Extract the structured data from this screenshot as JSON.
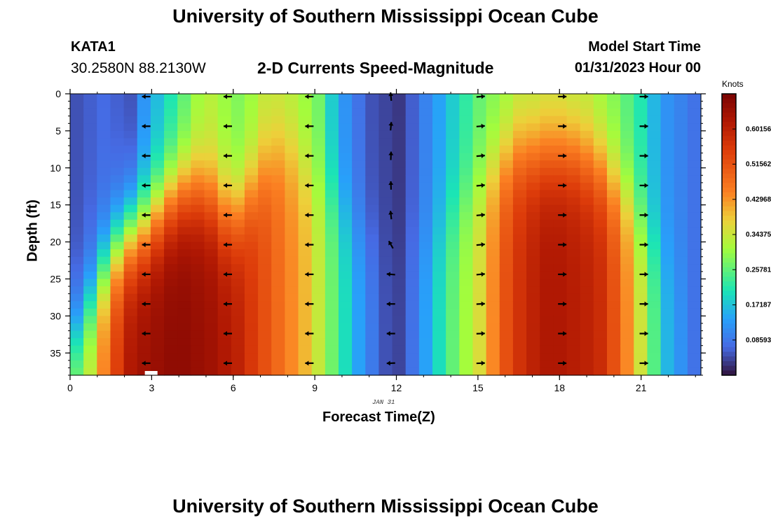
{
  "header": {
    "title": "University of Southern Mississippi Ocean Cube",
    "station_id": "KATA1",
    "coords": "30.2580N  88.2130W",
    "chart_title": "2-D Currents Speed-Magnitude",
    "model_start_label": "Model Start Time",
    "model_start_value": "01/31/2023 Hour 00"
  },
  "footer": {
    "title": "University of Southern Mississippi Ocean Cube"
  },
  "colors": {
    "low": "#30123b",
    "mid": "#a4fc3c",
    "high": "#7a0403"
  },
  "chart_data": {
    "type": "heatmap",
    "title": "2-D Currents Speed-Magnitude",
    "xlabel": "Forecast Time(Z)",
    "ylabel": "Depth (ft)",
    "date_label": "JAN 31",
    "x_ticks": [
      0,
      3,
      6,
      9,
      12,
      15,
      18,
      21
    ],
    "y_ticks": [
      0,
      5,
      10,
      15,
      20,
      25,
      30,
      35
    ],
    "xlim": [
      0,
      23.2
    ],
    "ylim": [
      0,
      38
    ],
    "colorbar": {
      "units": "Knots",
      "range": [
        0,
        0.6875
      ],
      "ticks": [
        "0.08593",
        "0.17187",
        "0.25781",
        "0.34375",
        "0.42968",
        "0.51562",
        "0.60156"
      ]
    },
    "hours": [
      0,
      0.5,
      1,
      1.5,
      2,
      2.5,
      3,
      3.5,
      4,
      4.5,
      5,
      5.5,
      6,
      6.5,
      7,
      7.5,
      8,
      8.5,
      9,
      9.5,
      10,
      10.5,
      11,
      11.5,
      12,
      12.5,
      13,
      13.5,
      14,
      14.5,
      15,
      15.5,
      16,
      16.5,
      17,
      17.5,
      18,
      18.5,
      19,
      19.5,
      20,
      20.5,
      21,
      21.5,
      22,
      22.5,
      23
    ],
    "surface_speed": [
      0.05,
      0.06,
      0.07,
      0.06,
      0.05,
      0.12,
      0.16,
      0.2,
      0.25,
      0.3,
      0.32,
      0.3,
      0.28,
      0.3,
      0.33,
      0.33,
      0.32,
      0.3,
      0.27,
      0.18,
      0.12,
      0.08,
      0.05,
      0.04,
      0.03,
      0.06,
      0.1,
      0.14,
      0.18,
      0.22,
      0.26,
      0.28,
      0.3,
      0.32,
      0.32,
      0.33,
      0.33,
      0.32,
      0.32,
      0.3,
      0.28,
      0.25,
      0.21,
      0.16,
      0.12,
      0.1,
      0.08
    ],
    "bottom_speed": [
      0.3,
      0.35,
      0.45,
      0.55,
      0.62,
      0.64,
      0.65,
      0.66,
      0.66,
      0.65,
      0.64,
      0.62,
      0.6,
      0.56,
      0.52,
      0.48,
      0.44,
      0.4,
      0.34,
      0.27,
      0.2,
      0.14,
      0.09,
      0.05,
      0.04,
      0.08,
      0.14,
      0.2,
      0.26,
      0.31,
      0.36,
      0.44,
      0.52,
      0.57,
      0.6,
      0.62,
      0.62,
      0.61,
      0.6,
      0.58,
      0.52,
      0.44,
      0.35,
      0.25,
      0.16,
      0.12,
      0.08
    ],
    "onset_depth_ft": [
      32,
      28,
      24,
      21,
      19,
      18,
      16,
      14,
      13,
      13,
      14,
      16,
      16,
      13,
      10,
      8,
      8,
      10,
      12,
      14,
      16,
      18,
      20,
      20,
      20,
      20,
      20,
      18,
      16,
      14,
      12,
      10,
      9,
      8,
      8,
      8,
      8,
      8,
      9,
      10,
      12,
      14,
      17,
      20,
      22,
      24,
      26
    ],
    "vector_times": [
      2.8,
      5.8,
      8.8,
      11.8,
      15.1,
      18.1,
      21.1
    ],
    "vector_depths": [
      0,
      4,
      8,
      12,
      16,
      20,
      24,
      28,
      32,
      36
    ],
    "vector_angles_deg": [
      [
        180,
        180,
        180,
        180,
        180,
        180,
        180,
        180,
        180,
        180
      ],
      [
        180,
        180,
        180,
        180,
        180,
        180,
        180,
        180,
        180,
        180
      ],
      [
        180,
        180,
        180,
        180,
        180,
        180,
        180,
        180,
        180,
        180
      ],
      [
        95,
        85,
        88,
        92,
        96,
        120,
        175,
        180,
        180,
        182
      ],
      [
        5,
        5,
        5,
        5,
        5,
        5,
        5,
        3,
        2,
        2
      ],
      [
        0,
        0,
        0,
        0,
        0,
        0,
        0,
        0,
        0,
        0
      ],
      [
        0,
        0,
        0,
        0,
        0,
        0,
        0,
        0,
        0,
        0
      ]
    ]
  }
}
